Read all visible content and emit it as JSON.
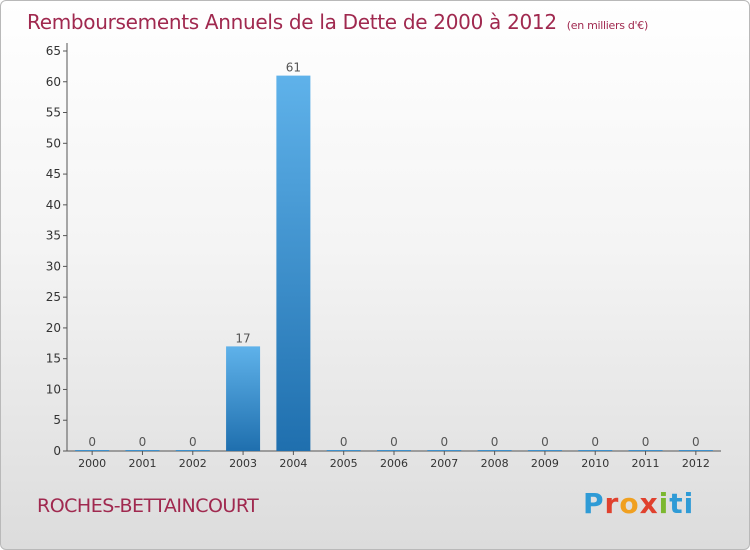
{
  "header": {
    "title": "Remboursements Annuels de la Dette de 2000 à 2012",
    "subtitle": "(en milliers d'€)"
  },
  "footer": {
    "place": "ROCHES-BETTAINCOURT",
    "logo": [
      "P",
      "r",
      "o",
      "x",
      "i",
      "ti"
    ]
  },
  "colors": {
    "bar_top": "#5fb2ea",
    "bar_bottom": "#1f6fae",
    "title": "#a0294f"
  },
  "chart_data": {
    "type": "bar",
    "categories": [
      "2000",
      "2001",
      "2002",
      "2003",
      "2004",
      "2005",
      "2006",
      "2007",
      "2008",
      "2009",
      "2010",
      "2011",
      "2012"
    ],
    "values": [
      0,
      0,
      0,
      17,
      61,
      0,
      0,
      0,
      0,
      0,
      0,
      0,
      0
    ],
    "data_labels": [
      "0",
      "0",
      "0",
      "17",
      "61",
      "0",
      "0",
      "0",
      "0",
      "0",
      "0",
      "0",
      "0"
    ],
    "ylim": [
      0,
      65
    ],
    "yticks": [
      0,
      5,
      10,
      15,
      20,
      25,
      30,
      35,
      40,
      45,
      50,
      55,
      60,
      65
    ],
    "grid": false,
    "legend": "none"
  }
}
